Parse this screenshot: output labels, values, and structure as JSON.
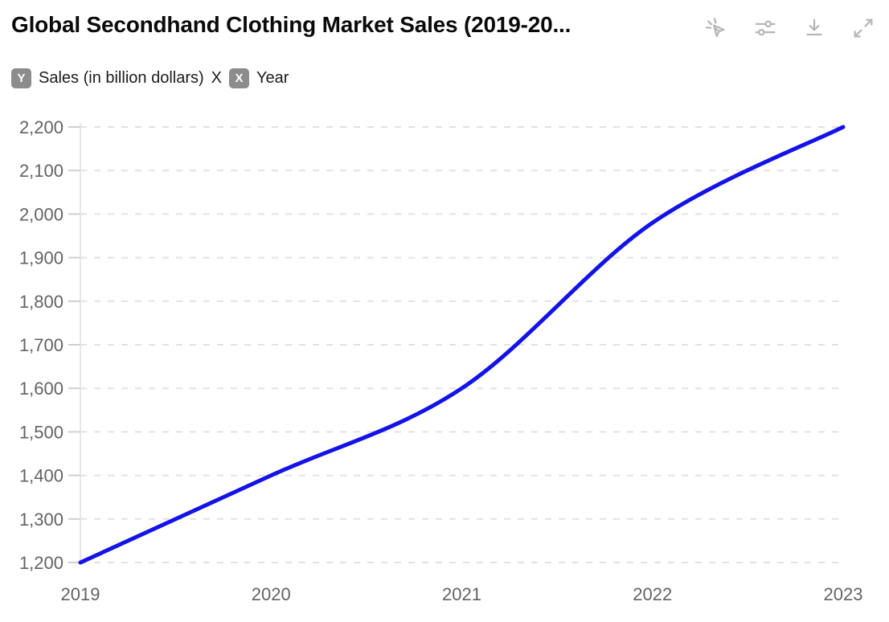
{
  "header": {
    "title": "Global Secondhand Clothing Market Sales (2019-20...",
    "toolbar": [
      {
        "icon": "pointer-interact-icon"
      },
      {
        "icon": "sliders-icon"
      },
      {
        "icon": "download-icon"
      },
      {
        "icon": "expand-icon"
      }
    ]
  },
  "axis_legend": {
    "y_badge": "Y",
    "y_label": "Sales (in billion dollars)",
    "separator": "X",
    "x_badge": "X",
    "x_label": "Year"
  },
  "chart_data": {
    "type": "line",
    "title": "Global Secondhand Clothing Market Sales (2019-20...",
    "x": [
      "2019",
      "2020",
      "2021",
      "2022",
      "2023"
    ],
    "series": [
      {
        "name": "Sales (in billion dollars)",
        "values": [
          1200,
          1400,
          1600,
          1980,
          2200
        ]
      }
    ],
    "xlabel": "Year",
    "ylabel": "Sales (in billion dollars)",
    "ylim": [
      1200,
      2200
    ],
    "ytick_step": 100,
    "yticks": [
      1200,
      1300,
      1400,
      1500,
      1600,
      1700,
      1800,
      1900,
      2000,
      2100,
      2200
    ],
    "ytick_labels": [
      "1,200",
      "1,300",
      "1,400",
      "1,500",
      "1,600",
      "1,700",
      "1,800",
      "1,900",
      "2,000",
      "2,100",
      "2,200"
    ],
    "grid": "horizontal-dashed",
    "legend": "none",
    "smooth": true,
    "colors": {
      "line": "#1313e8",
      "grid": "#e2e2e2",
      "tick": "#cfcfcf",
      "axis": "#dddddd",
      "label": "#636363"
    }
  }
}
